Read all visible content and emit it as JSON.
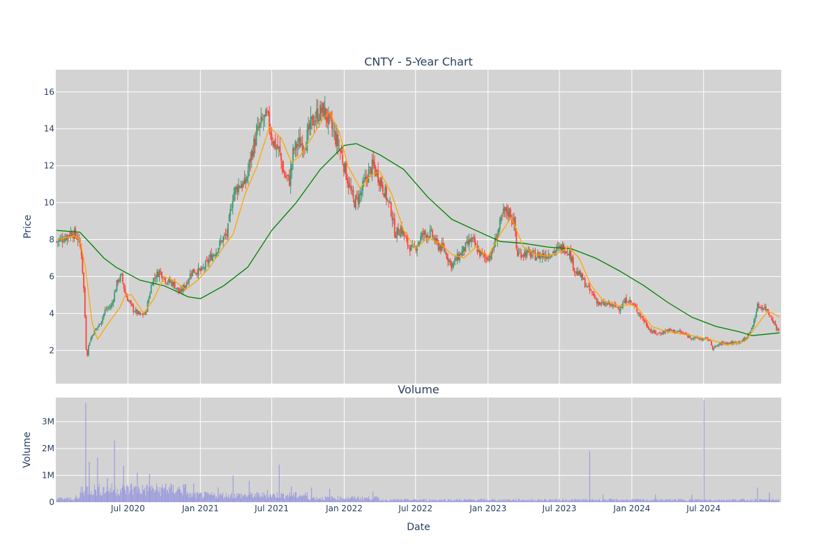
{
  "chart_data": [
    {
      "type": "candlestick",
      "title": "CNTY - 5-Year Chart",
      "ylabel": "Price",
      "ylim": [
        0.2,
        17.2
      ],
      "y_ticks": [
        2,
        4,
        6,
        8,
        10,
        12,
        14,
        16
      ],
      "x_ticks": [
        "Jul 2020",
        "Jan 2021",
        "Jul 2021",
        "Jan 2022",
        "Jul 2022",
        "Jan 2023",
        "Jul 2023",
        "Jan 2024",
        "Jul 2024"
      ],
      "grid": true,
      "colors": {
        "increasing": "#3d9970",
        "decreasing": "#ff4136",
        "ma_short": "#ffa500",
        "ma_long": "#008000",
        "plot_bg": "#d3d3d3"
      },
      "close_path": [
        [
          "2020-01-02",
          7.9
        ],
        [
          "2020-01-20",
          8.1
        ],
        [
          "2020-02-10",
          8.4
        ],
        [
          "2020-02-25",
          8.1
        ],
        [
          "2020-03-05",
          7.3
        ],
        [
          "2020-03-12",
          5.0
        ],
        [
          "2020-03-18",
          1.5
        ],
        [
          "2020-03-24",
          2.4
        ],
        [
          "2020-04-05",
          3.0
        ],
        [
          "2020-04-20",
          3.4
        ],
        [
          "2020-05-05",
          4.2
        ],
        [
          "2020-05-20",
          4.4
        ],
        [
          "2020-06-05",
          5.8
        ],
        [
          "2020-06-15",
          6.0
        ],
        [
          "2020-06-25",
          5.0
        ],
        [
          "2020-07-15",
          4.2
        ],
        [
          "2020-08-01",
          3.9
        ],
        [
          "2020-08-15",
          4.0
        ],
        [
          "2020-09-01",
          5.8
        ],
        [
          "2020-09-20",
          6.3
        ],
        [
          "2020-10-05",
          5.8
        ],
        [
          "2020-10-25",
          5.6
        ],
        [
          "2020-11-10",
          5.1
        ],
        [
          "2020-11-25",
          5.6
        ],
        [
          "2020-12-10",
          6.3
        ],
        [
          "2021-01-05",
          6.3
        ],
        [
          "2021-01-25",
          7.0
        ],
        [
          "2021-02-10",
          7.4
        ],
        [
          "2021-02-25",
          8.0
        ],
        [
          "2021-03-10",
          8.3
        ],
        [
          "2021-03-25",
          10.5
        ],
        [
          "2021-04-10",
          11.0
        ],
        [
          "2021-04-25",
          11.0
        ],
        [
          "2021-05-10",
          12.6
        ],
        [
          "2021-05-25",
          13.8
        ],
        [
          "2021-06-10",
          14.5
        ],
        [
          "2021-06-20",
          14.6
        ],
        [
          "2021-07-05",
          13.3
        ],
        [
          "2021-07-20",
          12.8
        ],
        [
          "2021-08-01",
          11.5
        ],
        [
          "2021-08-15",
          11.2
        ],
        [
          "2021-08-25",
          12.8
        ],
        [
          "2021-09-05",
          13.2
        ],
        [
          "2021-09-25",
          13.3
        ],
        [
          "2021-10-10",
          14.3
        ],
        [
          "2021-10-25",
          14.8
        ],
        [
          "2021-11-10",
          15.0
        ],
        [
          "2021-11-25",
          14.3
        ],
        [
          "2021-12-10",
          13.5
        ],
        [
          "2021-12-25",
          12.6
        ],
        [
          "2022-01-10",
          11.2
        ],
        [
          "2022-01-25",
          10.0
        ],
        [
          "2022-02-10",
          10.4
        ],
        [
          "2022-03-01",
          11.5
        ],
        [
          "2022-03-15",
          12.0
        ],
        [
          "2022-04-01",
          11.3
        ],
        [
          "2022-04-15",
          10.5
        ],
        [
          "2022-05-01",
          9.5
        ],
        [
          "2022-05-10",
          8.3
        ],
        [
          "2022-05-25",
          8.6
        ],
        [
          "2022-06-10",
          7.8
        ],
        [
          "2022-06-25",
          7.4
        ],
        [
          "2022-07-20",
          8.3
        ],
        [
          "2022-08-10",
          8.3
        ],
        [
          "2022-08-25",
          7.7
        ],
        [
          "2022-09-10",
          7.5
        ],
        [
          "2022-10-01",
          6.6
        ],
        [
          "2022-10-15",
          7.0
        ],
        [
          "2022-11-05",
          7.6
        ],
        [
          "2022-11-20",
          8.0
        ],
        [
          "2022-12-10",
          7.3
        ],
        [
          "2022-12-25",
          7.0
        ],
        [
          "2023-01-10",
          7.2
        ],
        [
          "2023-01-20",
          8.0
        ],
        [
          "2023-02-10",
          9.5
        ],
        [
          "2023-02-25",
          9.5
        ],
        [
          "2023-03-10",
          8.8
        ],
        [
          "2023-03-15",
          7.2
        ],
        [
          "2023-04-05",
          7.3
        ],
        [
          "2023-05-01",
          7.1
        ],
        [
          "2023-06-01",
          7.2
        ],
        [
          "2023-06-20",
          7.4
        ],
        [
          "2023-07-10",
          7.6
        ],
        [
          "2023-07-25",
          7.4
        ],
        [
          "2023-08-10",
          6.3
        ],
        [
          "2023-08-25",
          6.0
        ],
        [
          "2023-09-10",
          5.4
        ],
        [
          "2023-09-25",
          5.0
        ],
        [
          "2023-10-10",
          4.5
        ],
        [
          "2023-11-01",
          4.5
        ],
        [
          "2023-12-01",
          4.3
        ],
        [
          "2023-12-20",
          4.8
        ],
        [
          "2024-01-10",
          4.3
        ],
        [
          "2024-02-01",
          3.6
        ],
        [
          "2024-02-20",
          3.0
        ],
        [
          "2024-03-10",
          2.9
        ],
        [
          "2024-04-01",
          3.1
        ],
        [
          "2024-05-01",
          3.0
        ],
        [
          "2024-06-01",
          2.7
        ],
        [
          "2024-07-01",
          2.6
        ],
        [
          "2024-07-15",
          2.6
        ],
        [
          "2024-07-25",
          2.1
        ],
        [
          "2024-08-15",
          2.4
        ],
        [
          "2024-09-15",
          2.4
        ],
        [
          "2024-10-15",
          2.6
        ],
        [
          "2024-11-01",
          3.2
        ],
        [
          "2024-11-15",
          4.4
        ],
        [
          "2024-12-05",
          4.3
        ],
        [
          "2024-12-20",
          3.8
        ],
        [
          "2025-01-05",
          3.1
        ],
        [
          "2025-01-10",
          3.1
        ]
      ],
      "ma_short": [
        [
          "2020-01-02",
          8.0
        ],
        [
          "2020-02-15",
          8.2
        ],
        [
          "2020-03-01",
          8.0
        ],
        [
          "2020-03-15",
          6.5
        ],
        [
          "2020-04-01",
          3.5
        ],
        [
          "2020-04-15",
          2.6
        ],
        [
          "2020-05-10",
          3.4
        ],
        [
          "2020-06-10",
          4.3
        ],
        [
          "2020-06-25",
          5.0
        ],
        [
          "2020-07-10",
          5.0
        ],
        [
          "2020-08-10",
          4.0
        ],
        [
          "2020-09-05",
          4.8
        ],
        [
          "2020-10-01",
          6.0
        ],
        [
          "2020-10-25",
          5.8
        ],
        [
          "2020-11-25",
          5.3
        ],
        [
          "2020-12-25",
          5.8
        ],
        [
          "2021-01-25",
          6.5
        ],
        [
          "2021-02-25",
          7.5
        ],
        [
          "2021-03-25",
          8.3
        ],
        [
          "2021-04-25",
          10.5
        ],
        [
          "2021-05-25",
          12.0
        ],
        [
          "2021-06-25",
          14.1
        ],
        [
          "2021-07-25",
          13.5
        ],
        [
          "2021-08-20",
          12.2
        ],
        [
          "2021-09-10",
          12.5
        ],
        [
          "2021-10-10",
          13.5
        ],
        [
          "2021-11-10",
          14.6
        ],
        [
          "2021-11-25",
          14.9
        ],
        [
          "2021-12-20",
          13.8
        ],
        [
          "2022-01-10",
          12.0
        ],
        [
          "2022-02-10",
          10.8
        ],
        [
          "2022-03-10",
          11.5
        ],
        [
          "2022-04-01",
          11.7
        ],
        [
          "2022-05-01",
          10.5
        ],
        [
          "2022-06-01",
          8.5
        ],
        [
          "2022-07-01",
          7.5
        ],
        [
          "2022-08-01",
          8.1
        ],
        [
          "2022-09-01",
          7.8
        ],
        [
          "2022-10-01",
          7.2
        ],
        [
          "2022-11-01",
          7.0
        ],
        [
          "2022-12-01",
          7.6
        ],
        [
          "2023-01-01",
          7.1
        ],
        [
          "2023-02-01",
          8.3
        ],
        [
          "2023-03-01",
          9.2
        ],
        [
          "2023-04-01",
          7.6
        ],
        [
          "2023-05-01",
          7.2
        ],
        [
          "2023-06-01",
          7.1
        ],
        [
          "2023-07-01",
          7.3
        ],
        [
          "2023-07-25",
          7.6
        ],
        [
          "2023-08-20",
          7.0
        ],
        [
          "2023-09-20",
          5.5
        ],
        [
          "2023-10-20",
          4.7
        ],
        [
          "2023-12-01",
          4.4
        ],
        [
          "2024-01-01",
          4.5
        ],
        [
          "2024-01-20",
          4.2
        ],
        [
          "2024-02-20",
          3.3
        ],
        [
          "2024-04-01",
          3.0
        ],
        [
          "2024-06-01",
          2.8
        ],
        [
          "2024-07-15",
          2.6
        ],
        [
          "2024-09-01",
          2.3
        ],
        [
          "2024-10-15",
          2.5
        ],
        [
          "2024-11-15",
          3.4
        ],
        [
          "2024-12-10",
          4.1
        ],
        [
          "2024-12-25",
          4.0
        ],
        [
          "2025-01-10",
          3.8
        ]
      ],
      "ma_long": [
        [
          "2020-01-02",
          8.5
        ],
        [
          "2020-03-01",
          8.4
        ],
        [
          "2020-04-01",
          7.7
        ],
        [
          "2020-05-01",
          7.0
        ],
        [
          "2020-06-01",
          6.5
        ],
        [
          "2020-08-01",
          5.8
        ],
        [
          "2020-10-01",
          5.5
        ],
        [
          "2020-12-01",
          4.9
        ],
        [
          "2021-01-01",
          4.8
        ],
        [
          "2021-03-01",
          5.5
        ],
        [
          "2021-05-01",
          6.5
        ],
        [
          "2021-07-01",
          8.5
        ],
        [
          "2021-09-01",
          10.0
        ],
        [
          "2021-11-01",
          11.8
        ],
        [
          "2022-01-01",
          13.1
        ],
        [
          "2022-02-01",
          13.2
        ],
        [
          "2022-04-01",
          12.6
        ],
        [
          "2022-06-01",
          11.8
        ],
        [
          "2022-08-01",
          10.3
        ],
        [
          "2022-10-01",
          9.1
        ],
        [
          "2022-12-01",
          8.5
        ],
        [
          "2023-02-01",
          7.9
        ],
        [
          "2023-04-01",
          7.8
        ],
        [
          "2023-06-01",
          7.6
        ],
        [
          "2023-08-01",
          7.5
        ],
        [
          "2023-10-01",
          7.0
        ],
        [
          "2023-12-01",
          6.3
        ],
        [
          "2024-02-01",
          5.5
        ],
        [
          "2024-04-01",
          4.6
        ],
        [
          "2024-06-01",
          3.8
        ],
        [
          "2024-08-01",
          3.3
        ],
        [
          "2024-10-01",
          3.0
        ],
        [
          "2024-11-01",
          2.8
        ],
        [
          "2025-01-10",
          2.95
        ]
      ]
    },
    {
      "type": "bar",
      "title": "Volume",
      "xlabel": "Date",
      "ylabel": "Volume",
      "ylim": [
        0,
        3900000
      ],
      "y_ticks": [
        0,
        1000000,
        2000000,
        3000000
      ],
      "y_tick_labels": [
        "0",
        "1M",
        "2M",
        "3M"
      ],
      "x_ticks": [
        "Jul 2020",
        "Jan 2021",
        "Jul 2021",
        "Jan 2022",
        "Jul 2022",
        "Jan 2023",
        "Jul 2023",
        "Jan 2024",
        "Jul 2024"
      ],
      "colors": {
        "bar": "#9c9cdc",
        "plot_bg": "#d3d3d3"
      },
      "spikes": [
        [
          "2020-02-20",
          250000
        ],
        [
          "2020-03-16",
          3700000
        ],
        [
          "2020-03-25",
          1500000
        ],
        [
          "2020-04-15",
          1650000
        ],
        [
          "2020-05-10",
          900000
        ],
        [
          "2020-05-28",
          2300000
        ],
        [
          "2020-06-20",
          1350000
        ],
        [
          "2020-07-10",
          700000
        ],
        [
          "2020-07-25",
          1100000
        ],
        [
          "2020-08-25",
          1050000
        ],
        [
          "2020-10-05",
          700000
        ],
        [
          "2020-11-20",
          650000
        ],
        [
          "2020-12-15",
          700000
        ],
        [
          "2021-02-15",
          550000
        ],
        [
          "2021-03-25",
          1000000
        ],
        [
          "2021-05-05",
          800000
        ],
        [
          "2021-06-20",
          450000
        ],
        [
          "2021-07-20",
          1400000
        ],
        [
          "2021-08-20",
          600000
        ],
        [
          "2021-10-10",
          550000
        ],
        [
          "2021-11-25",
          500000
        ],
        [
          "2022-03-15",
          400000
        ],
        [
          "2023-09-16",
          1900000
        ],
        [
          "2023-10-20",
          300000
        ],
        [
          "2024-03-01",
          300000
        ],
        [
          "2024-06-01",
          280000
        ],
        [
          "2024-07-02",
          3800000
        ],
        [
          "2024-11-15",
          550000
        ],
        [
          "2024-12-15",
          350000
        ]
      ]
    }
  ]
}
